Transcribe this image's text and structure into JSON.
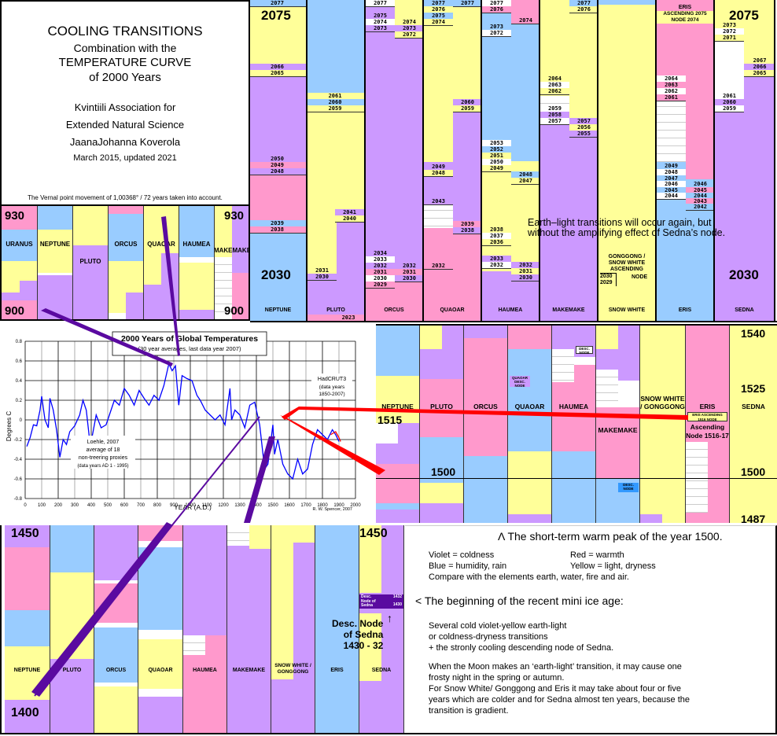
{
  "title_box": {
    "line1": "COOLING TRANSITIONS",
    "line2": "Combination with the",
    "line3": "TEMPERATURE CURVE",
    "line4": "of 2000 Years",
    "org1": "Kvintiili Association for",
    "org2": "Extended Natural Science",
    "author": "JaanaJohanna Koverola",
    "date": "March 2015, updated 2021",
    "footnote": "The Vernal point movement of 1,00368° / 72 years taken into account."
  },
  "panel_2030": {
    "big_top_left": "2075",
    "big_top_right": "2075",
    "big_bottom_left": "2030",
    "big_bottom_right": "2030",
    "columns": [
      "NEPTUNE",
      "PLUTO",
      "ORCUS",
      "QUAOAR",
      "HAUMEA",
      "MAKEMAKE",
      "SNOW WHITE",
      "ERIS",
      "SEDNA"
    ],
    "eris_node_label": "ERIS",
    "eris_ascending": "ASCENDING 2075",
    "eris_node": "NODE 2074",
    "gonggong_note1": "GONGGONG /",
    "gonggong_note2": "SNOW WHITE",
    "gonggong_note3": "ASCENDING",
    "gonggong_note4": "NODE",
    "gonggong_years": [
      "2030",
      "2029"
    ],
    "overlay_text1": "Earth–light transitions will occur again, but",
    "overlay_text2": "without the amplifying effect of Sedna’s node.",
    "pluto_bottom_year": "2023",
    "neptune_years": [
      "2077",
      "2066",
      "2065",
      "2050",
      "2049",
      "2048",
      "2039",
      "2038"
    ],
    "pluto_years": [
      "2061",
      "2060",
      "2059",
      "2041",
      "2040",
      "2031",
      "2030"
    ],
    "orcus_years_a": [
      "2077",
      "2075",
      "2074",
      "2073",
      "2034",
      "2033",
      "2032",
      "2031",
      "2030",
      "2029"
    ],
    "orcus_years_b": [
      "2074",
      "2073",
      "2072",
      "2032",
      "2031",
      "2030"
    ],
    "quaoar_years_a": [
      "2077",
      "2076",
      "2075",
      "2074",
      "2049",
      "2048",
      "2043"
    ],
    "quaoar_years_b": [
      "2077",
      "2060",
      "2059",
      "2039",
      "2038",
      "2032"
    ],
    "haumea_years_a": [
      "2077",
      "2076",
      "2073",
      "2072",
      "2053",
      "2052",
      "2051",
      "2050",
      "2049",
      "2038",
      "2037",
      "2036",
      "2033",
      "2032"
    ],
    "haumea_years_b": [
      "2074",
      "2048",
      "2047",
      "2032",
      "2031",
      "2030"
    ],
    "makemake_years_a": [
      "2064",
      "2063",
      "2062",
      "2059",
      "2058",
      "2057"
    ],
    "makemake_years_b": [
      "2077",
      "2076",
      "2057",
      "2056",
      "2055"
    ],
    "eris_years_a": [
      "2064",
      "2063",
      "2062",
      "2061",
      "2049",
      "2048",
      "2047",
      "2046",
      "2045",
      "2044"
    ],
    "eris_years_b": [
      "2046",
      "2045",
      "2044",
      "2043",
      "2042"
    ],
    "sedna_years_a": [
      "2073",
      "2072",
      "2071",
      "2061",
      "2060",
      "2059"
    ],
    "sedna_years_b": [
      "2067",
      "2066",
      "2065"
    ]
  },
  "panel_900": {
    "big_top_left": "930",
    "big_top_right": "930",
    "big_bottom_left": "900",
    "big_bottom_right": "900",
    "columns": [
      "URANUS",
      "NEPTUNE",
      "PLUTO",
      "ORCUS",
      "QUAOAR",
      "HAUMEA",
      "MAKEMAKE"
    ]
  },
  "panel_1500": {
    "big_1540": "1540",
    "big_1525": "1525",
    "big_1515": "1515",
    "big_1500_left": "1500",
    "big_1500_right": "1500",
    "big_1487": "1487",
    "columns": [
      "NEPTUNE",
      "PLUTO",
      "ORCUS",
      "QUAOAR",
      "HAUMEA",
      "MAKEMAKE",
      "SNOW WHITE / GONGGONG",
      "ERIS",
      "SEDNA"
    ],
    "quaoar_node": "QUAOAR DESC. NODE",
    "haumea_node": "DESC. NODE",
    "makemake_node": "DESC. NODE",
    "eris_node_box": "ERIS ASCENDING 1516 NODE",
    "eris_node_label1": "Ascending",
    "eris_node_label2": "Node 1516-17"
  },
  "panel_1400": {
    "big_top_left": "1450",
    "big_top_right": "1450",
    "big_bottom_left": "1400",
    "columns": [
      "NEPTUNE",
      "PLUTO",
      "ORCUS",
      "QUAOAR",
      "HAUMEA",
      "MAKEMAKE",
      "SNOW WHITE / GONGGONG",
      "ERIS",
      "SEDNA"
    ],
    "sedna_node_box_left": "Desc. Node of Sedna",
    "sedna_node_box_right_top": "1432",
    "sedna_node_box_right_bottom": "1430",
    "sedna_callout1": "Desc. Node",
    "sedna_callout2": "of Sedna",
    "sedna_callout3": "1430 - 32"
  },
  "notes": {
    "warm_peak": "Λ The short-term warm peak of the year 1500.",
    "legend": [
      {
        "label": "Violet = coldness",
        "color": "#cc99ff"
      },
      {
        "label": "Red = warmth",
        "color": "#ff99cc"
      },
      {
        "label": "Blue = humidity, rain",
        "color": "#99ccff"
      },
      {
        "label": "Yellow = light, dryness",
        "color": "#ffff99"
      }
    ],
    "compare": "Compare with the elements earth, water, fire and air.",
    "ice_age_heading": "< The beginning of the recent mini ice age:",
    "ice_age_p1_l1": "Several cold violet-yellow earth-light",
    "ice_age_p1_l2": "or coldness-dryness transitions",
    "ice_age_p1_l3": "+ the stronly cooling descending node of Sedna.",
    "ice_age_p2_l1": "When the Moon makes an ‘earth-light’ transition, it may cause one",
    "ice_age_p2_l2": "frosty night in the spring or autumn.",
    "ice_age_p2_l3": "For Snow White/ Gonggong and Eris it may take about four or five",
    "ice_age_p2_l4": "years which are colder and for Sedna almost ten years, because the",
    "ice_age_p2_l5": "transition is gradient."
  },
  "colors": {
    "violet": "#cc99ff",
    "red": "#ff99cc",
    "blue": "#99ccff",
    "yellow": "#ffff99",
    "connector_purple": "#5a0aa0",
    "connector_red": "#ff0000",
    "curve_blue": "#0000ff"
  },
  "chart_data": {
    "type": "line",
    "title": "2000 Years of Global Temperatures",
    "subtitle": "(30 year averages, last data year 2007)",
    "xlabel": "YEAR (A.D.)",
    "ylabel": "Degrees C",
    "xlim": [
      0,
      2000
    ],
    "ylim": [
      -0.8,
      0.8
    ],
    "xticks": [
      0,
      100,
      200,
      300,
      400,
      500,
      600,
      700,
      800,
      900,
      1000,
      1100,
      1200,
      1300,
      1400,
      1500,
      1600,
      1700,
      1800,
      1900,
      2000
    ],
    "yticks": [
      -0.8,
      -0.6,
      -0.4,
      -0.2,
      0,
      0.2,
      0.4,
      0.6,
      0.8
    ],
    "grid": true,
    "credit": "R. W. Spencer, 2007",
    "series": [
      {
        "name": "Loehle, 2007 average of 18 non-treering proxies (data years AD 1 - 1995)",
        "color": "#0000ff",
        "x": [
          10,
          30,
          50,
          70,
          90,
          100,
          120,
          140,
          150,
          170,
          190,
          210,
          230,
          250,
          270,
          300,
          330,
          350,
          370,
          390,
          400,
          430,
          460,
          490,
          510,
          540,
          570,
          600,
          630,
          660,
          690,
          720,
          750,
          780,
          810,
          840,
          870,
          890,
          910,
          930,
          950,
          980,
          1010,
          1040,
          1060,
          1090,
          1120,
          1150,
          1180,
          1210,
          1240,
          1250,
          1270,
          1300,
          1330,
          1360,
          1390,
          1400,
          1420,
          1450,
          1470,
          1500,
          1510,
          1530,
          1560,
          1590,
          1620,
          1650,
          1680,
          1710,
          1740,
          1770,
          1800,
          1830,
          1860,
          1880,
          1900
        ],
        "y": [
          -0.27,
          -0.18,
          -0.05,
          -0.06,
          0.1,
          0.24,
          0.0,
          -0.08,
          0.22,
          0.1,
          -0.1,
          -0.38,
          -0.2,
          -0.25,
          -0.12,
          -0.06,
          0.05,
          0.2,
          0.1,
          -0.2,
          -0.22,
          0.05,
          -0.08,
          -0.05,
          0.05,
          0.2,
          0.15,
          0.32,
          0.25,
          0.15,
          0.3,
          0.22,
          0.15,
          0.25,
          0.2,
          0.35,
          0.57,
          0.5,
          0.55,
          0.15,
          0.45,
          0.42,
          0.4,
          0.25,
          0.2,
          0.1,
          0.05,
          0.0,
          0.05,
          -0.05,
          0.32,
          0.0,
          0.1,
          0.05,
          -0.08,
          0.15,
          0.18,
          0.1,
          -0.05,
          -0.5,
          -0.45,
          -0.05,
          -0.35,
          -0.2,
          -0.45,
          -0.55,
          -0.6,
          -0.4,
          -0.55,
          -0.5,
          -0.25,
          -0.1,
          -0.15,
          -0.2,
          -0.1,
          -0.15,
          -0.22
        ]
      },
      {
        "name": "HadCRUT3 (data years 1850-2007)",
        "color": "#ff0000",
        "x": [
          1850,
          1880,
          1900,
          1910
        ],
        "y": [
          -0.15,
          -0.12,
          -0.18,
          -0.22
        ]
      }
    ],
    "annotations": [
      {
        "text": "Loehle, 2007",
        "x": 310,
        "y": -0.3
      },
      {
        "text": "average of 18",
        "x": 310,
        "y": -0.38
      },
      {
        "text": "non-treering proxies",
        "x": 310,
        "y": -0.46
      },
      {
        "text": "(data years AD 1 - 1995)",
        "x": 310,
        "y": -0.54
      },
      {
        "text": "HadCRUT3",
        "x": 1850,
        "y": 0.38
      },
      {
        "text": "(data years",
        "x": 1850,
        "y": 0.3
      },
      {
        "text": "1850-2007)",
        "x": 1850,
        "y": 0.22
      }
    ]
  }
}
